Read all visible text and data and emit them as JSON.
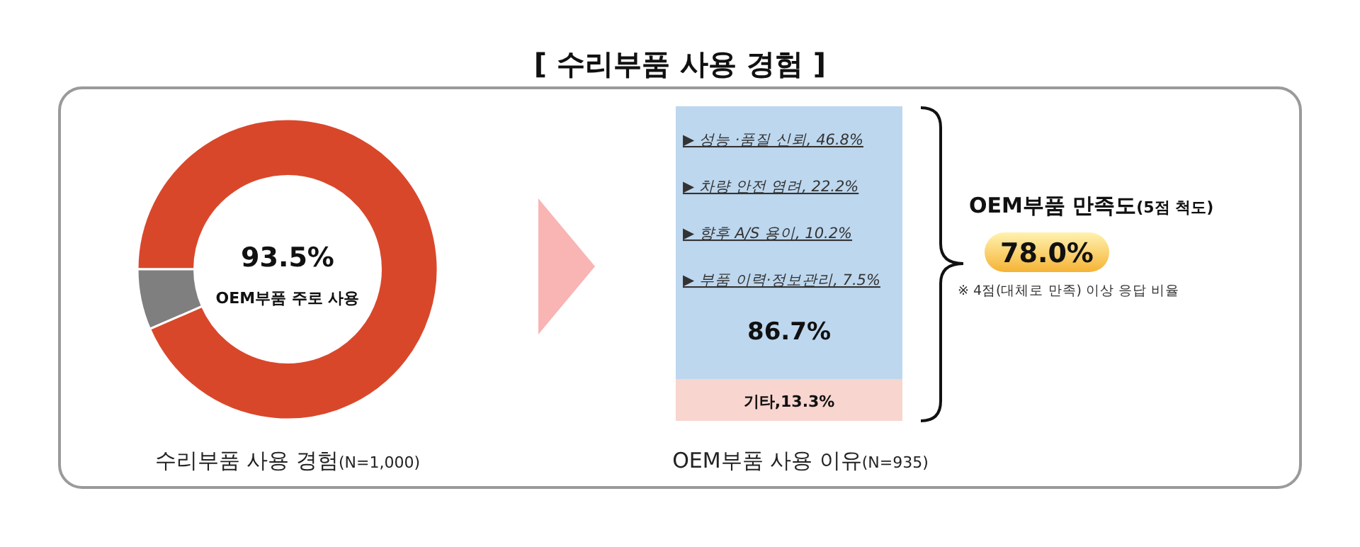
{
  "chart_data": [
    {
      "type": "donut",
      "xlabel": "수리부품 사용 경험(N=1,000)",
      "categories": [
        "OEM부품 주로 사용",
        null
      ],
      "values": [
        93.5,
        6.5
      ],
      "colors": [
        "#d9472b",
        "#7f7f7f"
      ],
      "value_labels": [
        "93.5%",
        null
      ]
    },
    {
      "type": "bar",
      "title": "[ 수리부품 사용 경험 ]",
      "stacked": true,
      "xlabel": "OEM부품 사용 이유(N=935)",
      "categories": [
        null
      ],
      "series": [
        {
          "color": "#f8d5cf",
          "values": [
            13.3
          ],
          "value_labels": [
            "기타,13.3%"
          ]
        },
        {
          "color": "#bdd7ee",
          "values": [
            86.7
          ],
          "value_labels": [
            "86.7%"
          ]
        }
      ],
      "annotations": [
        "▶ 성능 ·품질 신뢰, 46.8%",
        "▶ 차량 안전 염려, 22.2%",
        "▶ 향후 A/S 용이, 10.2%",
        "▶ 부품 이력·정보관리, 7.5%"
      ]
    },
    {
      "type": "other",
      "title": "OEM부품 만족도(5점 척도)",
      "annotations": [
        "78.0%",
        "※ 4점(대체로 만족) 이상 응답 비율"
      ]
    }
  ]
}
